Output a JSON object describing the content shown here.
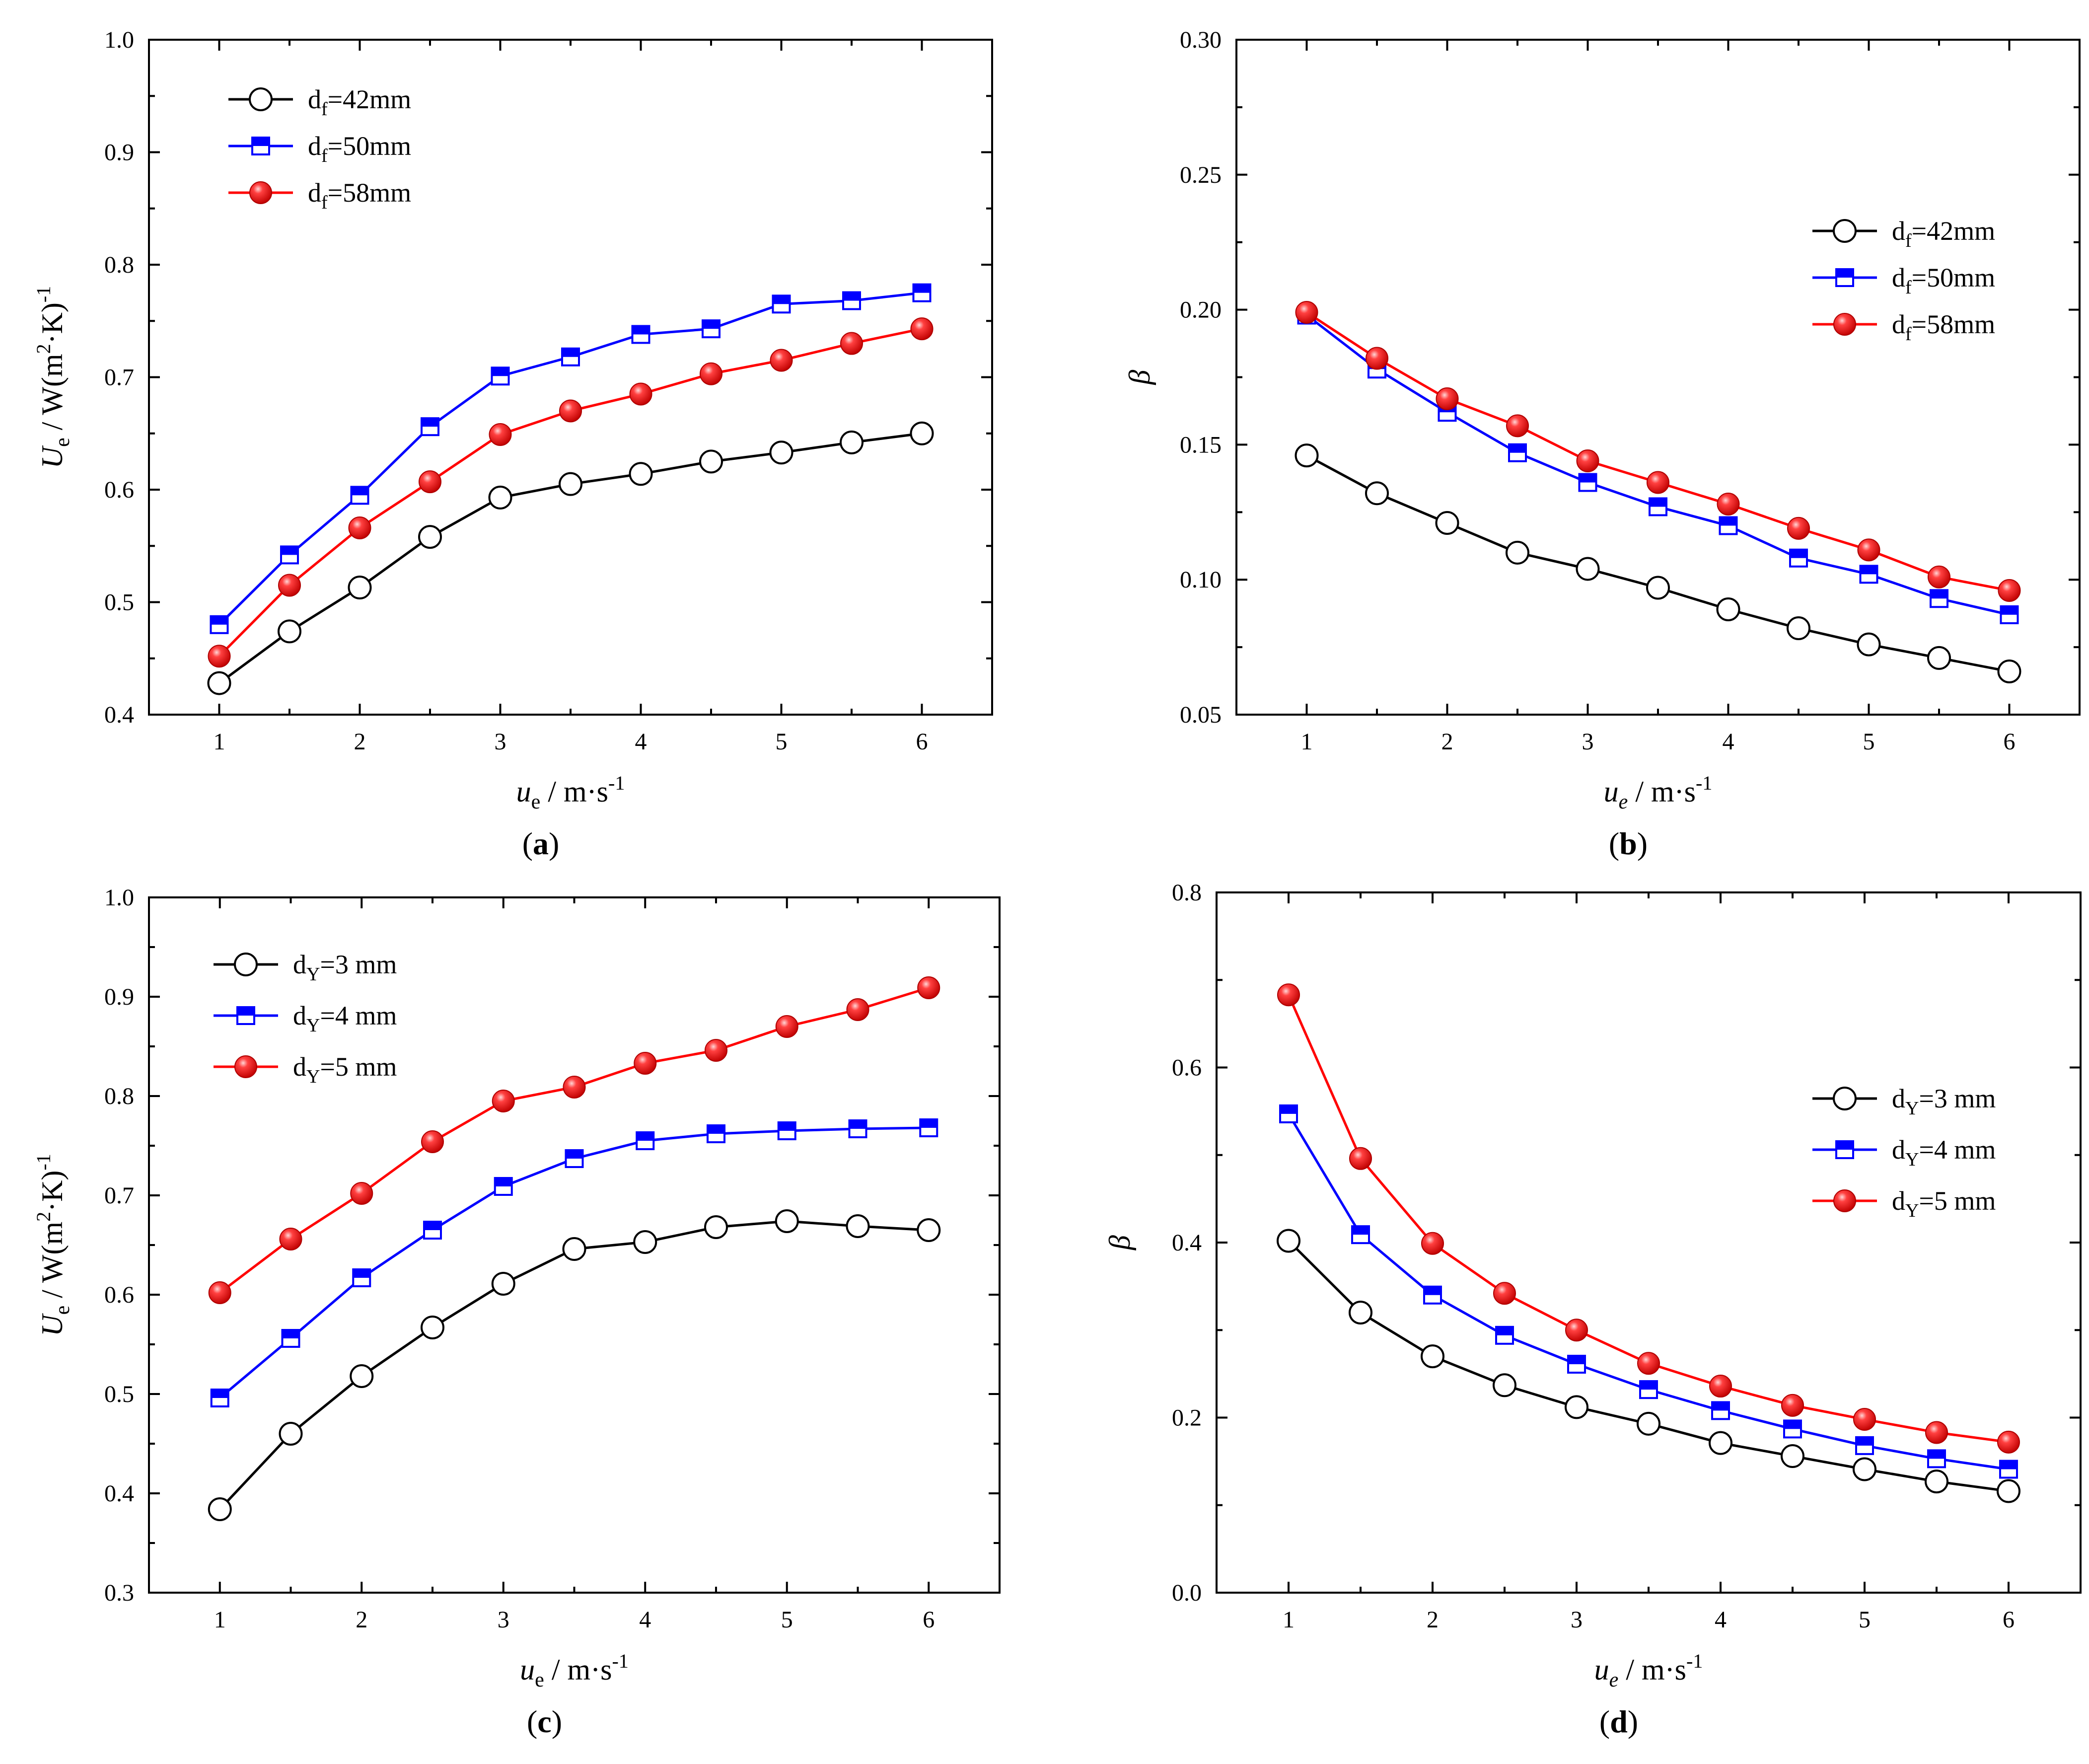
{
  "chart_data": [
    {
      "type": "line",
      "panel_label": "a",
      "x": [
        1,
        1.5,
        2,
        2.5,
        3,
        3.5,
        4,
        4.5,
        5,
        5.5,
        6
      ],
      "xlim": [
        0.5,
        6.5
      ],
      "ylim": [
        0.4,
        1.0
      ],
      "xticks": [
        "1",
        "2",
        "3",
        "4",
        "5",
        "6"
      ],
      "yticks": [
        "0.4",
        "0.5",
        "0.6",
        "0.7",
        "0.8",
        "0.9",
        "1.0"
      ],
      "xlabel": {
        "main": "u",
        "sub": "e",
        "rest": " / m·s",
        "sup": "-1"
      },
      "ylabel": {
        "main": "U",
        "sub": "e",
        "rest1": " / W(m",
        "sup1": "2",
        "rest2": "·K)",
        "sup2": "-1"
      },
      "legend_position": "top-left",
      "series": [
        {
          "name": "df=42mm",
          "label_main": "d",
          "label_sub": "f",
          "label_rest": "=42mm",
          "color": "#000000",
          "marker": "open-circle",
          "values": [
            0.428,
            0.474,
            0.513,
            0.558,
            0.593,
            0.605,
            0.614,
            0.625,
            0.633,
            0.642,
            0.65
          ]
        },
        {
          "name": "df=50mm",
          "label_main": "d",
          "label_sub": "f",
          "label_rest": "=50mm",
          "color": "#0000ff",
          "marker": "half-square",
          "values": [
            0.48,
            0.542,
            0.595,
            0.656,
            0.701,
            0.718,
            0.738,
            0.743,
            0.765,
            0.768,
            0.775
          ]
        },
        {
          "name": "df=58mm",
          "label_main": "d",
          "label_sub": "f",
          "label_rest": "=58mm",
          "color": "#ff0000",
          "marker": "ball",
          "values": [
            0.452,
            0.515,
            0.566,
            0.607,
            0.649,
            0.67,
            0.685,
            0.703,
            0.715,
            0.73,
            0.743
          ]
        }
      ]
    },
    {
      "type": "line",
      "panel_label": "b",
      "x": [
        1,
        1.5,
        2,
        2.5,
        3,
        3.5,
        4,
        4.5,
        5,
        5.5,
        6
      ],
      "xlim": [
        0.5,
        6.5
      ],
      "ylim": [
        0.05,
        0.3
      ],
      "xticks": [
        "1",
        "2",
        "3",
        "4",
        "5",
        "6"
      ],
      "yticks": [
        "0.05",
        "0.10",
        "0.15",
        "0.20",
        "0.25",
        "0.30"
      ],
      "xlabel": {
        "main": "u",
        "sub": "e",
        "rest": " / m·s",
        "sup": "-1"
      },
      "ylabel": {
        "main": "β"
      },
      "legend_position": "right",
      "series": [
        {
          "name": "df=42mm",
          "label_main": "d",
          "label_sub": "f",
          "label_rest": "=42mm",
          "color": "#000000",
          "marker": "open-circle",
          "values": [
            0.146,
            0.132,
            0.121,
            0.11,
            0.104,
            0.097,
            0.089,
            0.082,
            0.076,
            0.071,
            0.066
          ]
        },
        {
          "name": "df=50mm",
          "label_main": "d",
          "label_sub": "f",
          "label_rest": "=50mm",
          "color": "#0000ff",
          "marker": "half-square",
          "values": [
            0.198,
            0.178,
            0.162,
            0.147,
            0.136,
            0.127,
            0.12,
            0.108,
            0.102,
            0.093,
            0.087
          ]
        },
        {
          "name": "df=58mm",
          "label_main": "d",
          "label_sub": "f",
          "label_rest": "=58mm",
          "color": "#ff0000",
          "marker": "ball",
          "values": [
            0.199,
            0.182,
            0.167,
            0.157,
            0.144,
            0.136,
            0.128,
            0.119,
            0.111,
            0.101,
            0.096
          ]
        }
      ]
    },
    {
      "type": "line",
      "panel_label": "c",
      "x": [
        1,
        1.5,
        2,
        2.5,
        3,
        3.5,
        4,
        4.5,
        5,
        5.5,
        6
      ],
      "xlim": [
        0.5,
        6.5
      ],
      "ylim": [
        0.3,
        1.0
      ],
      "xticks": [
        "1",
        "2",
        "3",
        "4",
        "5",
        "6"
      ],
      "yticks": [
        "0.3",
        "0.4",
        "0.5",
        "0.6",
        "0.7",
        "0.8",
        "0.9",
        "1.0"
      ],
      "xlabel": {
        "main": "u",
        "sub": "e",
        "rest": " / m·s",
        "sup": "-1"
      },
      "ylabel": {
        "main": "U",
        "sub": "e",
        "rest1": " / W(m",
        "sup1": "2",
        "rest2": "·K)",
        "sup2": "-1"
      },
      "legend_position": "top-left",
      "series": [
        {
          "name": "dY=3 mm",
          "label_main": "d",
          "label_sub": "Y",
          "label_rest": "=3 mm",
          "color": "#000000",
          "marker": "open-circle",
          "values": [
            0.384,
            0.46,
            0.518,
            0.567,
            0.611,
            0.646,
            0.653,
            0.668,
            0.674,
            0.669,
            0.665
          ]
        },
        {
          "name": "dY=4 mm",
          "label_main": "d",
          "label_sub": "Y",
          "label_rest": "=4 mm",
          "color": "#0000ff",
          "marker": "half-square",
          "values": [
            0.496,
            0.556,
            0.617,
            0.665,
            0.709,
            0.737,
            0.755,
            0.762,
            0.765,
            0.767,
            0.768
          ]
        },
        {
          "name": "dY=5 mm",
          "label_main": "d",
          "label_sub": "Y",
          "label_rest": "=5 mm",
          "color": "#ff0000",
          "marker": "ball",
          "values": [
            0.602,
            0.656,
            0.702,
            0.754,
            0.795,
            0.809,
            0.833,
            0.846,
            0.87,
            0.887,
            0.909
          ]
        }
      ]
    },
    {
      "type": "line",
      "panel_label": "d",
      "x": [
        1,
        1.5,
        2,
        2.5,
        3,
        3.5,
        4,
        4.5,
        5,
        5.5,
        6
      ],
      "xlim": [
        0.5,
        6.5
      ],
      "ylim": [
        0.0,
        0.8
      ],
      "xticks": [
        "1",
        "2",
        "3",
        "4",
        "5",
        "6"
      ],
      "yticks": [
        "0.0",
        "0.2",
        "0.4",
        "0.6",
        "0.8"
      ],
      "xlabel": {
        "main": "u",
        "sub": "e",
        "rest": " / m·s",
        "sup": "-1"
      },
      "ylabel": {
        "main": "β"
      },
      "legend_position": "right",
      "series": [
        {
          "name": "dY=3 mm",
          "label_main": "d",
          "label_sub": "Y",
          "label_rest": "=3 mm",
          "color": "#000000",
          "marker": "open-circle",
          "values": [
            0.402,
            0.32,
            0.27,
            0.237,
            0.212,
            0.193,
            0.171,
            0.156,
            0.141,
            0.127,
            0.116
          ]
        },
        {
          "name": "dY=4 mm",
          "label_main": "d",
          "label_sub": "Y",
          "label_rest": "=4 mm",
          "color": "#0000ff",
          "marker": "half-square",
          "values": [
            0.547,
            0.409,
            0.34,
            0.294,
            0.261,
            0.232,
            0.208,
            0.187,
            0.168,
            0.153,
            0.141
          ]
        },
        {
          "name": "dY=5 mm",
          "label_main": "d",
          "label_sub": "Y",
          "label_rest": "=5 mm",
          "color": "#ff0000",
          "marker": "ball",
          "values": [
            0.683,
            0.496,
            0.399,
            0.342,
            0.3,
            0.262,
            0.236,
            0.214,
            0.198,
            0.183,
            0.172
          ]
        }
      ]
    }
  ]
}
